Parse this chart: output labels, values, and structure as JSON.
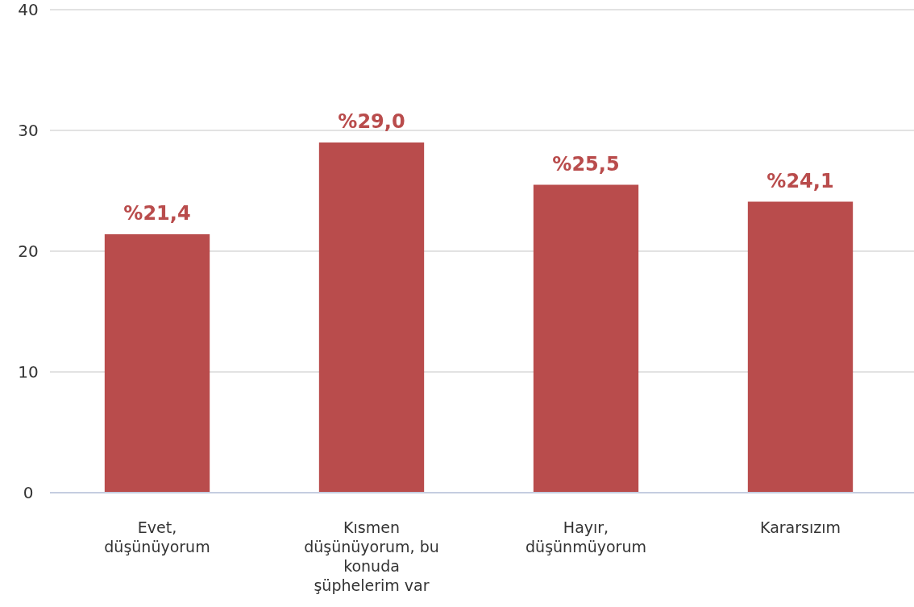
{
  "chart_data": {
    "type": "bar",
    "categories": [
      "Evet, düşünüyorum",
      "Kısmen düşünüyorum, bu konuda şüphelerim var",
      "Hayır, düşünmüyorum",
      "Kararsızım"
    ],
    "series": [
      {
        "color": "#b94c4c",
        "values": [
          21.4,
          29.0,
          25.5,
          24.1
        ],
        "value_labels": [
          "%21,4",
          "%29,0",
          "%25,5",
          "%24,1"
        ]
      }
    ],
    "ylim": [
      0,
      40
    ],
    "yticks": [
      0,
      10,
      20,
      30,
      40
    ],
    "grid": "y"
  }
}
